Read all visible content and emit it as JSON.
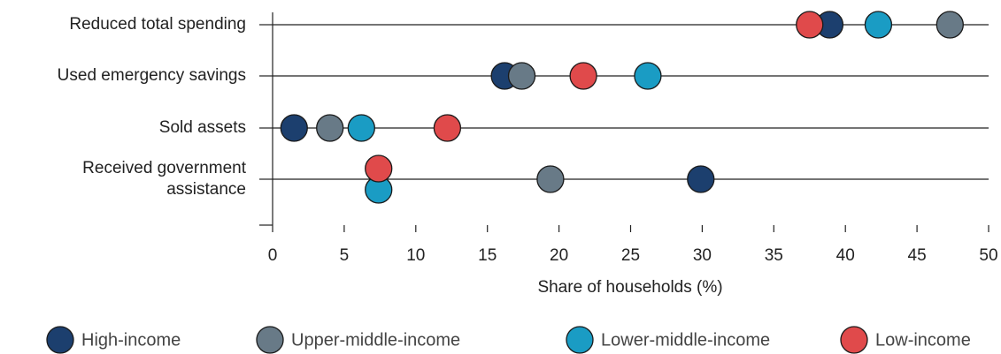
{
  "chart_data": {
    "type": "dot",
    "categories": [
      "Reduced total spending",
      "Used emergency savings",
      "Sold assets",
      "Received government assistance"
    ],
    "series": [
      {
        "name": "High-income",
        "color": "#1c3f6e",
        "values": [
          38.9,
          16.2,
          1.5,
          29.9
        ]
      },
      {
        "name": "Upper-middle-income",
        "color": "#687a87",
        "values": [
          47.3,
          17.4,
          4.0,
          19.4
        ]
      },
      {
        "name": "Lower-middle-income",
        "color": "#1a9cc4",
        "values": [
          42.3,
          26.2,
          6.2,
          7.4
        ]
      },
      {
        "name": "Low-income",
        "color": "#e04a4b",
        "values": [
          37.5,
          21.7,
          12.2,
          7.4
        ]
      }
    ],
    "x_label": "Share of households (%)",
    "xlim": [
      0,
      50
    ],
    "xticks": [
      0,
      5,
      10,
      15,
      20,
      25,
      30,
      35,
      40,
      45,
      50
    ],
    "grid": true,
    "legend": "bottom"
  }
}
